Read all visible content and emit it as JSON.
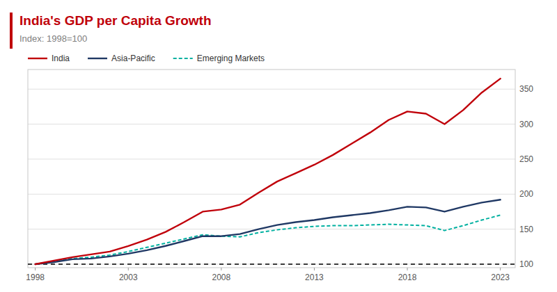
{
  "chart_data": {
    "type": "line",
    "title": "India's GDP per Capita Growth",
    "subtitle": "Index: 1998=100",
    "x": [
      1998,
      1999,
      2000,
      2001,
      2002,
      2003,
      2004,
      2005,
      2006,
      2007,
      2008,
      2009,
      2010,
      2011,
      2012,
      2013,
      2014,
      2015,
      2016,
      2017,
      2018,
      2019,
      2020,
      2021,
      2022,
      2023
    ],
    "series": [
      {
        "name": "India",
        "color": "#c0000a",
        "line_style": "solid",
        "values": [
          100,
          105,
          110,
          114,
          118,
          126,
          135,
          146,
          160,
          175,
          178,
          185,
          202,
          218,
          230,
          242,
          256,
          272,
          288,
          306,
          318,
          315,
          300,
          320,
          345,
          365
        ]
      },
      {
        "name": "Asia-Pacific",
        "color": "#1f3864",
        "line_style": "solid",
        "values": [
          100,
          103,
          107,
          108,
          111,
          115,
          120,
          126,
          133,
          140,
          140,
          143,
          150,
          156,
          160,
          163,
          167,
          170,
          173,
          177,
          182,
          181,
          175,
          182,
          188,
          192
        ]
      },
      {
        "name": "Emerging Markets",
        "color": "#00b0a0",
        "line_style": "dashed",
        "values": [
          100,
          104,
          108,
          110,
          113,
          118,
          124,
          130,
          136,
          142,
          140,
          139,
          145,
          149,
          152,
          154,
          155,
          155,
          156,
          157,
          156,
          155,
          148,
          155,
          163,
          170
        ]
      }
    ],
    "reference_line": 100,
    "xlim": [
      1997.6,
      2023.8
    ],
    "xticks": [
      1998,
      2003,
      2008,
      2013,
      2018,
      2023
    ],
    "ylim": [
      95,
      378
    ],
    "yticks": [
      100,
      150,
      200,
      250,
      300,
      350
    ],
    "grid": true,
    "legend": "upper left"
  }
}
